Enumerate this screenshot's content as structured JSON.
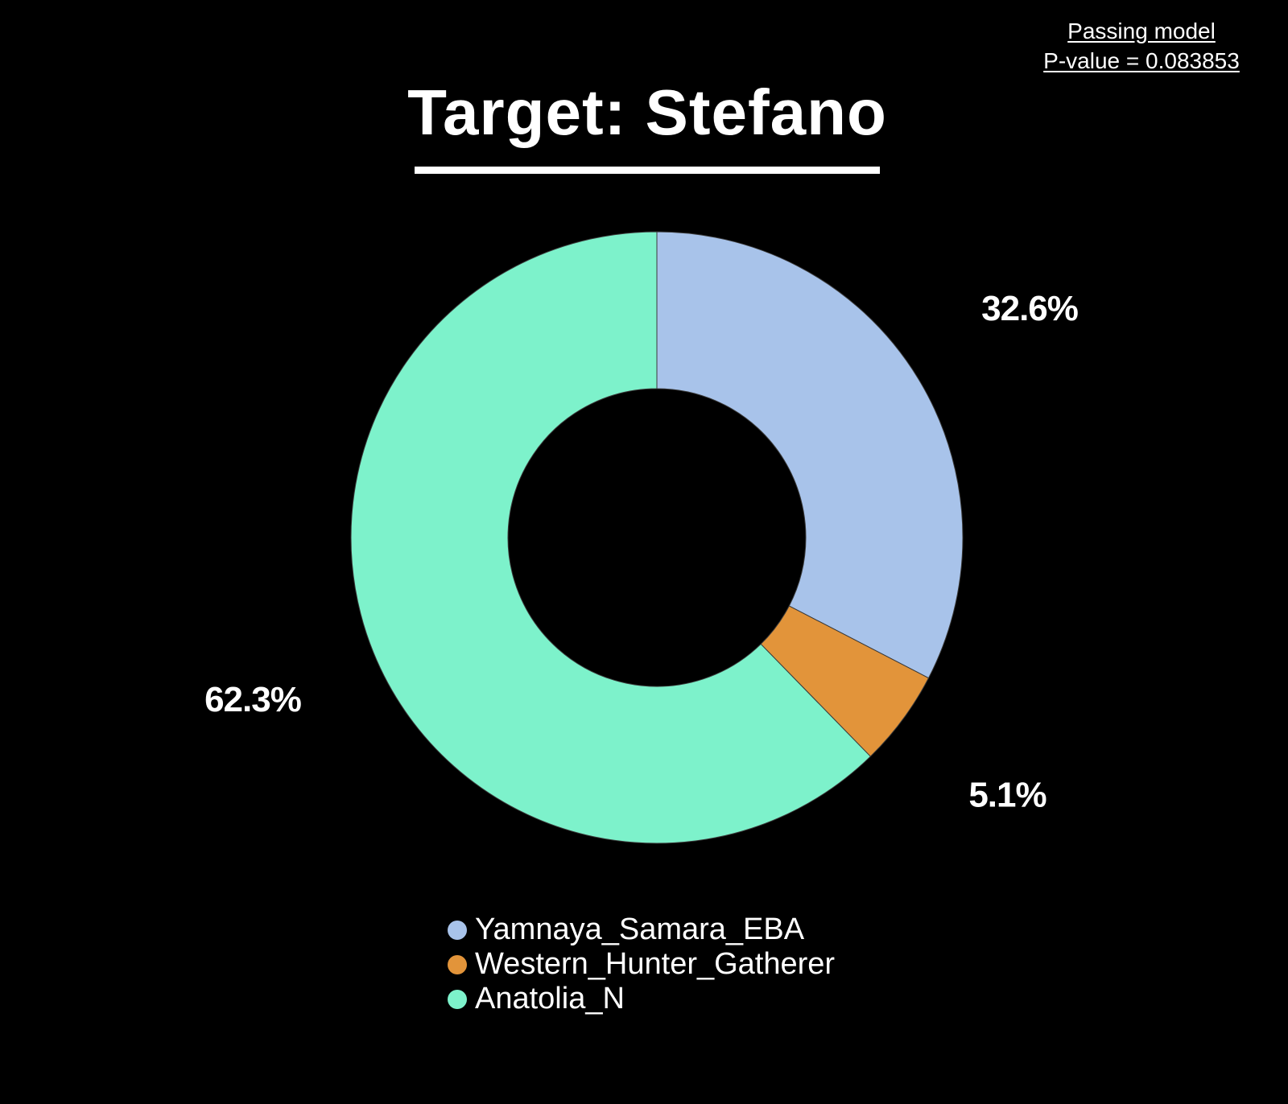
{
  "note": {
    "line1": "Passing model",
    "line2": "P-value = 0.083853"
  },
  "chart_data": {
    "type": "pie",
    "style": "donut",
    "title": "Target: Stefano",
    "slices": [
      {
        "name": "Yamnaya_Samara_EBA",
        "value": 32.6,
        "label": "32.6%",
        "color": "#a8c3ea"
      },
      {
        "name": "Western_Hunter_Gatherer",
        "value": 5.1,
        "label": "5.1%",
        "color": "#e2943a"
      },
      {
        "name": "Anatolia_N",
        "value": 62.3,
        "label": "62.3%",
        "color": "#7df2cb"
      }
    ],
    "start": "12 o'clock",
    "direction": "clockwise",
    "legend_position": "bottom",
    "background": "#000000"
  }
}
